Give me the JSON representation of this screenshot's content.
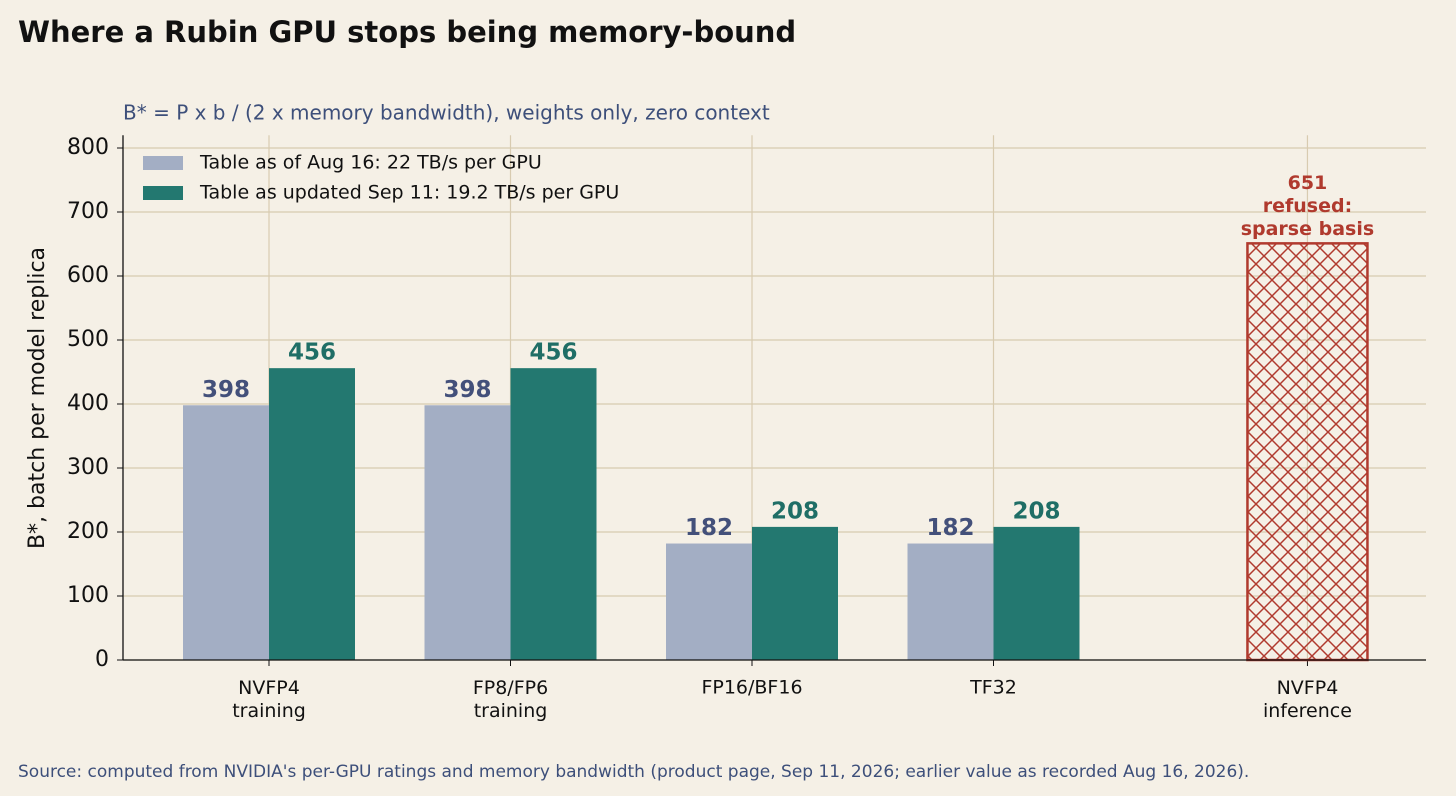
{
  "chart_data": {
    "type": "bar",
    "title": "Where a Rubin GPU stops being memory-bound",
    "subtitle": "B* = P x b / (2 x memory bandwidth), weights only, zero context",
    "y_label": "B*, batch per model replica",
    "source": "Source: computed from NVIDIA's per-GPU ratings and memory bandwidth (product page, Sep 11, 2026; earlier value as recorded Aug 16, 2026).",
    "categories": [
      "NVFP4\ntraining",
      "FP8/FP6\ntraining",
      "FP16/BF16",
      "TF32",
      "NVFP4\ninference"
    ],
    "series": [
      {
        "name": "Table as of Aug 16: 22 TB/s per GPU",
        "color": "#a3aec4",
        "label_color": "#43507a",
        "values": [
          398,
          398,
          182,
          182,
          null
        ]
      },
      {
        "name": "Table as updated Sep 11: 19.2 TB/s per GPU",
        "color": "#237870",
        "label_color": "#1f6e66",
        "values": [
          456,
          456,
          208,
          208,
          null
        ]
      },
      {
        "color": "#b03a2e",
        "label_color": "#b03a2e",
        "hatch": true,
        "values": [
          null,
          null,
          null,
          null,
          651
        ],
        "note": [
          "refused:",
          "sparse basis"
        ]
      }
    ],
    "ylim": [
      0,
      820
    ],
    "yticks": [
      0,
      100,
      200,
      300,
      400,
      500,
      600,
      700,
      800
    ],
    "grid": true,
    "legend": "upper left"
  }
}
